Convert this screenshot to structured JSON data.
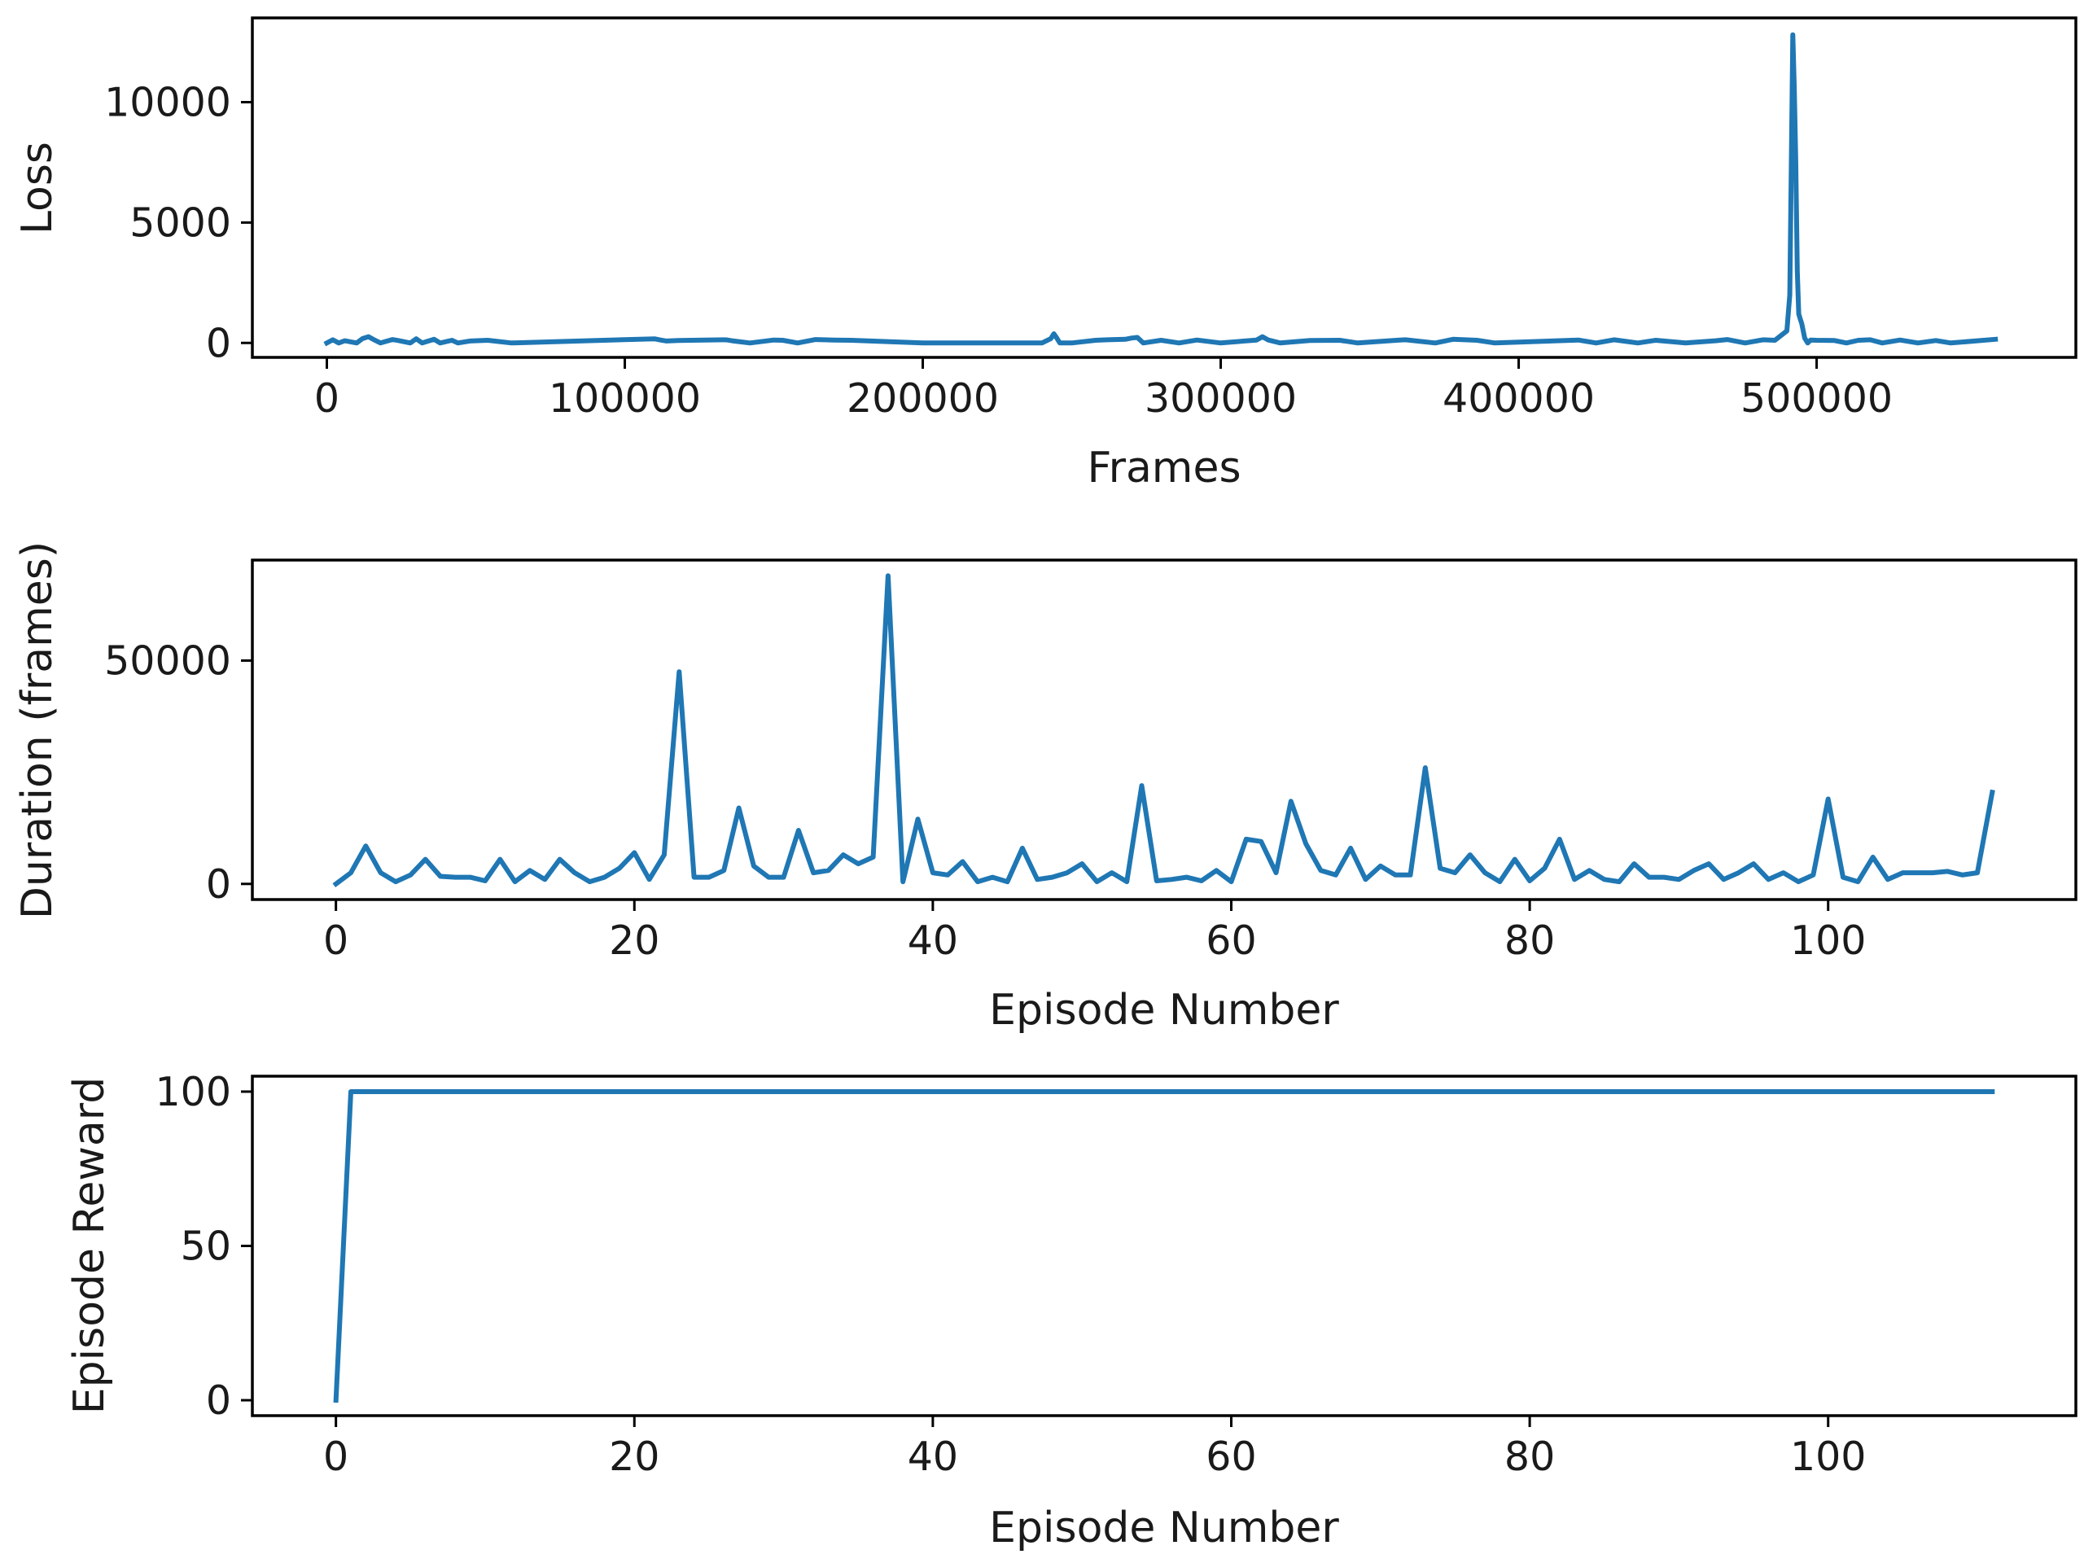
{
  "colors": {
    "line": "#1f77b4",
    "axes": "#000000",
    "background": "#ffffff"
  },
  "chart_data": [
    {
      "type": "line",
      "xlabel": "Frames",
      "ylabel": "Loss",
      "xlim": [
        -25000,
        587000
      ],
      "ylim": [
        -600,
        13500
      ],
      "xticks": [
        0,
        100000,
        200000,
        300000,
        400000,
        500000
      ],
      "xtick_labels": [
        "0",
        "100000",
        "200000",
        "300000",
        "400000",
        "500000"
      ],
      "yticks": [
        0,
        5000,
        10000
      ],
      "ytick_labels": [
        "0",
        "5000",
        "10000"
      ],
      "grid": false,
      "legend": "none",
      "series": [
        {
          "x": [
            0,
            2000,
            4000,
            6000,
            10000,
            12000,
            14000,
            16000,
            18000,
            22000,
            24000,
            28000,
            30000,
            32000,
            36000,
            38000,
            42000,
            44000,
            48000,
            54000,
            62000,
            110000,
            112000,
            114000,
            118000,
            134000,
            136000,
            142000,
            150000,
            153000,
            158000,
            164000,
            170000,
            176000,
            200000,
            240000,
            243000,
            244000,
            245000,
            246000,
            250000,
            258000,
            262000,
            268000,
            270000,
            272000,
            274000,
            280000,
            286000,
            292000,
            300000,
            312000,
            314000,
            316000,
            320000,
            330000,
            340000,
            346000,
            360000,
            362000,
            372000,
            378000,
            386000,
            392000,
            420000,
            426000,
            432000,
            440000,
            446000,
            456000,
            466000,
            470000,
            476000,
            482000,
            486000,
            490000,
            491000,
            492000,
            492500,
            493000,
            493500,
            494000,
            494500,
            495000,
            496000,
            497000,
            498000,
            500000,
            506000,
            510000,
            514000,
            518000,
            522000,
            528000,
            534000,
            540000,
            545000,
            560000
          ],
          "y": [
            0,
            130,
            0,
            90,
            0,
            180,
            260,
            120,
            0,
            140,
            100,
            0,
            170,
            0,
            150,
            0,
            110,
            0,
            80,
            110,
            0,
            170,
            120,
            80,
            100,
            130,
            90,
            0,
            120,
            110,
            0,
            140,
            120,
            110,
            0,
            0,
            180,
            380,
            200,
            0,
            0,
            110,
            130,
            150,
            200,
            230,
            0,
            110,
            0,
            120,
            0,
            120,
            260,
            120,
            0,
            100,
            110,
            0,
            120,
            130,
            0,
            150,
            110,
            0,
            120,
            0,
            130,
            0,
            110,
            0,
            90,
            140,
            0,
            130,
            110,
            500,
            2000,
            12800,
            10600,
            7600,
            3000,
            1200,
            1000,
            800,
            200,
            0,
            120,
            110,
            100,
            0,
            110,
            130,
            0,
            120,
            0,
            100,
            0,
            150
          ]
        }
      ]
    },
    {
      "type": "line",
      "xlabel": "Episode Number",
      "ylabel": "Duration (frames)",
      "xlim": [
        -5.6,
        116.6
      ],
      "ylim": [
        -3500,
        72500
      ],
      "xticks": [
        0,
        20,
        40,
        60,
        80,
        100
      ],
      "xtick_labels": [
        "0",
        "20",
        "40",
        "60",
        "80",
        "100"
      ],
      "yticks": [
        0,
        50000
      ],
      "ytick_labels": [
        "0",
        "50000"
      ],
      "grid": false,
      "legend": "none",
      "series": [
        {
          "x": [
            0,
            1,
            2,
            3,
            4,
            5,
            6,
            7,
            8,
            9,
            10,
            11,
            12,
            13,
            14,
            15,
            16,
            17,
            18,
            19,
            20,
            21,
            22,
            23,
            24,
            25,
            26,
            27,
            28,
            29,
            30,
            31,
            32,
            33,
            34,
            35,
            36,
            37,
            38,
            39,
            40,
            41,
            42,
            43,
            44,
            45,
            46,
            47,
            48,
            49,
            50,
            51,
            52,
            53,
            54,
            55,
            56,
            57,
            58,
            59,
            60,
            61,
            62,
            63,
            64,
            65,
            66,
            67,
            68,
            69,
            70,
            71,
            72,
            73,
            74,
            75,
            76,
            77,
            78,
            79,
            80,
            81,
            82,
            83,
            84,
            85,
            86,
            87,
            88,
            89,
            90,
            91,
            92,
            93,
            94,
            95,
            96,
            97,
            98,
            99,
            100,
            101,
            102,
            103,
            104,
            105,
            106,
            107,
            108,
            109,
            110,
            111
          ],
          "y": [
            0,
            2500,
            8500,
            2500,
            500,
            2000,
            5500,
            1700,
            1500,
            1500,
            700,
            5500,
            500,
            3000,
            1000,
            5500,
            2500,
            500,
            1500,
            3500,
            7000,
            1000,
            6500,
            47500,
            1500,
            1500,
            3000,
            17000,
            4000,
            1500,
            1500,
            12000,
            2500,
            3000,
            6500,
            4500,
            6000,
            69000,
            500,
            14500,
            2500,
            2000,
            5000,
            500,
            1500,
            500,
            8000,
            1000,
            1500,
            2500,
            4500,
            500,
            2500,
            500,
            22000,
            700,
            1000,
            1500,
            700,
            3000,
            500,
            10000,
            9500,
            2500,
            18500,
            9000,
            3000,
            2000,
            8000,
            1000,
            4000,
            2000,
            2000,
            26000,
            3500,
            2500,
            6500,
            2500,
            500,
            5500,
            700,
            3500,
            10000,
            1000,
            3000,
            1000,
            500,
            4500,
            1500,
            1500,
            1000,
            3000,
            4500,
            1000,
            2500,
            4500,
            1000,
            2500,
            500,
            2000,
            19000,
            1500,
            500,
            6000,
            1000,
            2500,
            2500,
            2500,
            2800,
            2000,
            2500,
            20500
          ]
        }
      ]
    },
    {
      "type": "line",
      "xlabel": "Episode Number",
      "ylabel": "Episode Reward",
      "xlim": [
        -5.6,
        116.6
      ],
      "ylim": [
        -5,
        105
      ],
      "xticks": [
        0,
        20,
        40,
        60,
        80,
        100
      ],
      "xtick_labels": [
        "0",
        "20",
        "40",
        "60",
        "80",
        "100"
      ],
      "yticks": [
        0,
        50,
        100
      ],
      "ytick_labels": [
        "0",
        "50",
        "100"
      ],
      "grid": false,
      "legend": "none",
      "series": [
        {
          "x": [
            0,
            1,
            111
          ],
          "y": [
            0,
            100,
            100
          ]
        }
      ]
    }
  ]
}
